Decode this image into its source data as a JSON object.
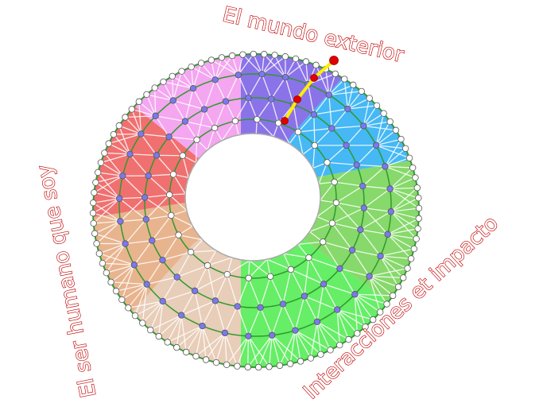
{
  "labels": {
    "top": "El mundo exterior",
    "left": "El ser humano que soy",
    "bottom_right": "Interacciones et impacto"
  },
  "colors": {
    "label_outline": "#c00000",
    "ring_line": "#2e9a2e",
    "mesh": "#ffffff",
    "outer_node": "#ffffff",
    "inner_node": "#7b78ee",
    "path_highlight": "#ffee00",
    "path_node": "#e00000",
    "sectors": [
      "#8a73e8",
      "#45b8f5",
      "#86d96a",
      "#66ee66",
      "#e8cdb8",
      "#e8b48e",
      "#f07070",
      "#f4a6f0"
    ]
  }
}
